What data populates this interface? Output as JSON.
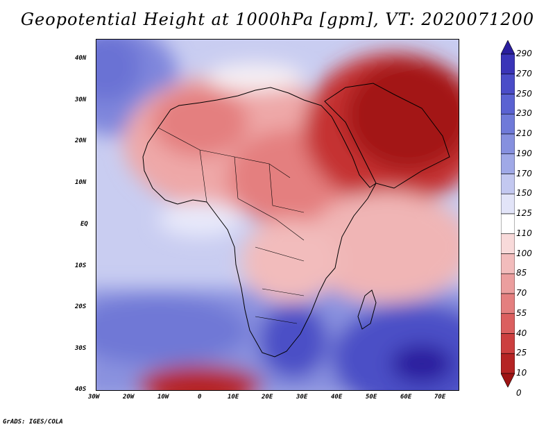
{
  "title": "Geopotential Height at 1000hPa [gpm], VT: 2020071200",
  "map": {
    "lat_labels": [
      "40N",
      "30N",
      "20N",
      "10N",
      "EQ",
      "10S",
      "20S",
      "30S",
      "40S"
    ],
    "lon_labels": [
      "30W",
      "20W",
      "10W",
      "0",
      "10E",
      "20E",
      "30E",
      "40E",
      "50E",
      "60E",
      "70E"
    ]
  },
  "colorbar": {
    "levels": [
      "290",
      "270",
      "250",
      "230",
      "210",
      "190",
      "170",
      "150",
      "125",
      "110",
      "100",
      "85",
      "70",
      "55",
      "40",
      "25",
      "10",
      "0"
    ],
    "colors": [
      "#2a1e9e",
      "#3a34b8",
      "#4a4cc8",
      "#5a62d2",
      "#6f7ad9",
      "#8690df",
      "#a0a9e7",
      "#c3c8f0",
      "#e2e4f8",
      "#ffffff",
      "#f8dada",
      "#f2bcbc",
      "#eb9e9e",
      "#e47f7f",
      "#db5f5f",
      "#cc3f3f",
      "#b52424",
      "#9e1414"
    ]
  },
  "footer": "GrADS: IGES/COLA"
}
